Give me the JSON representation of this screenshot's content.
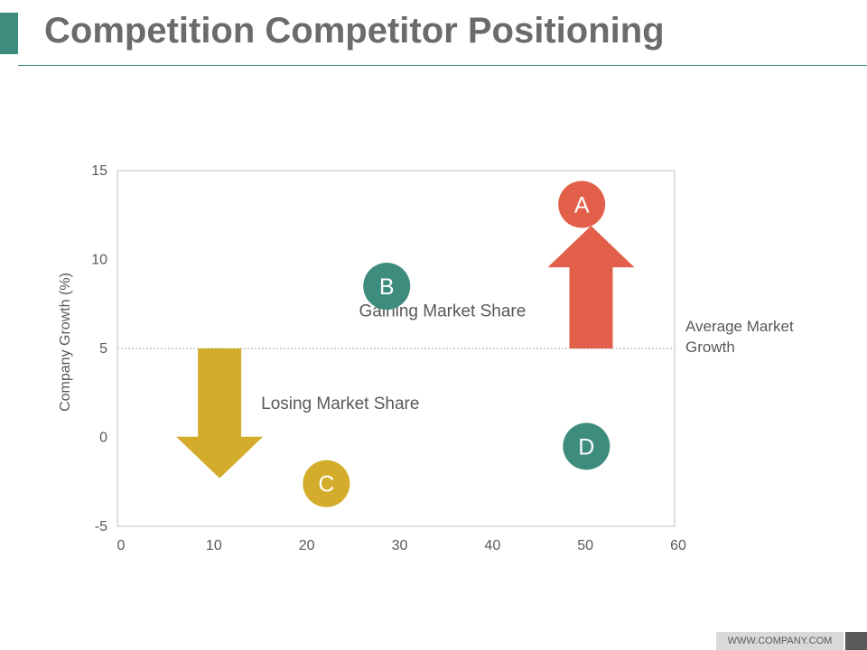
{
  "slide": {
    "title": "Competition Competitor Positioning",
    "footer_url": "WWW.COMPANY.COM"
  },
  "chart_data": {
    "type": "scatter",
    "title": "",
    "xlabel": "",
    "ylabel": "Company Growth (%)",
    "xlim": [
      0,
      60
    ],
    "ylim": [
      -5,
      15
    ],
    "x_ticks": [
      0,
      10,
      20,
      30,
      40,
      50,
      60
    ],
    "y_ticks": [
      -5,
      0,
      5,
      10,
      15
    ],
    "grid": false,
    "legend": "none",
    "points": [
      {
        "label": "A",
        "x": 50,
        "y": 13.1,
        "color": "#e2604a"
      },
      {
        "label": "B",
        "x": 29,
        "y": 8.5,
        "color": "#3e8c7d"
      },
      {
        "label": "C",
        "x": 22.5,
        "y": -2.6,
        "color": "#d3ac2b"
      },
      {
        "label": "D",
        "x": 50.5,
        "y": -0.5,
        "color": "#3e8c7d"
      }
    ],
    "reference_line": {
      "y": 5,
      "label": "Average Market Growth"
    },
    "annotations": [
      {
        "text": "Gaining Market Share",
        "x": 35,
        "y": 6.8
      },
      {
        "text": "Losing Market Share",
        "x": 24,
        "y": 1.6
      }
    ],
    "arrows": [
      {
        "name": "gaining-arrow",
        "direction": "up",
        "x": 51,
        "y_from": 5,
        "y_to": 11.9,
        "color": "#e2604a"
      },
      {
        "name": "losing-arrow",
        "direction": "down",
        "x": 11,
        "y_from": 5,
        "y_to": -2.3,
        "color": "#d3ac2b"
      }
    ],
    "colors": {
      "axis_text": "#595959",
      "frame": "#bfbfbf",
      "ref_line": "#a6a6a6",
      "label": "#ffffff"
    }
  }
}
